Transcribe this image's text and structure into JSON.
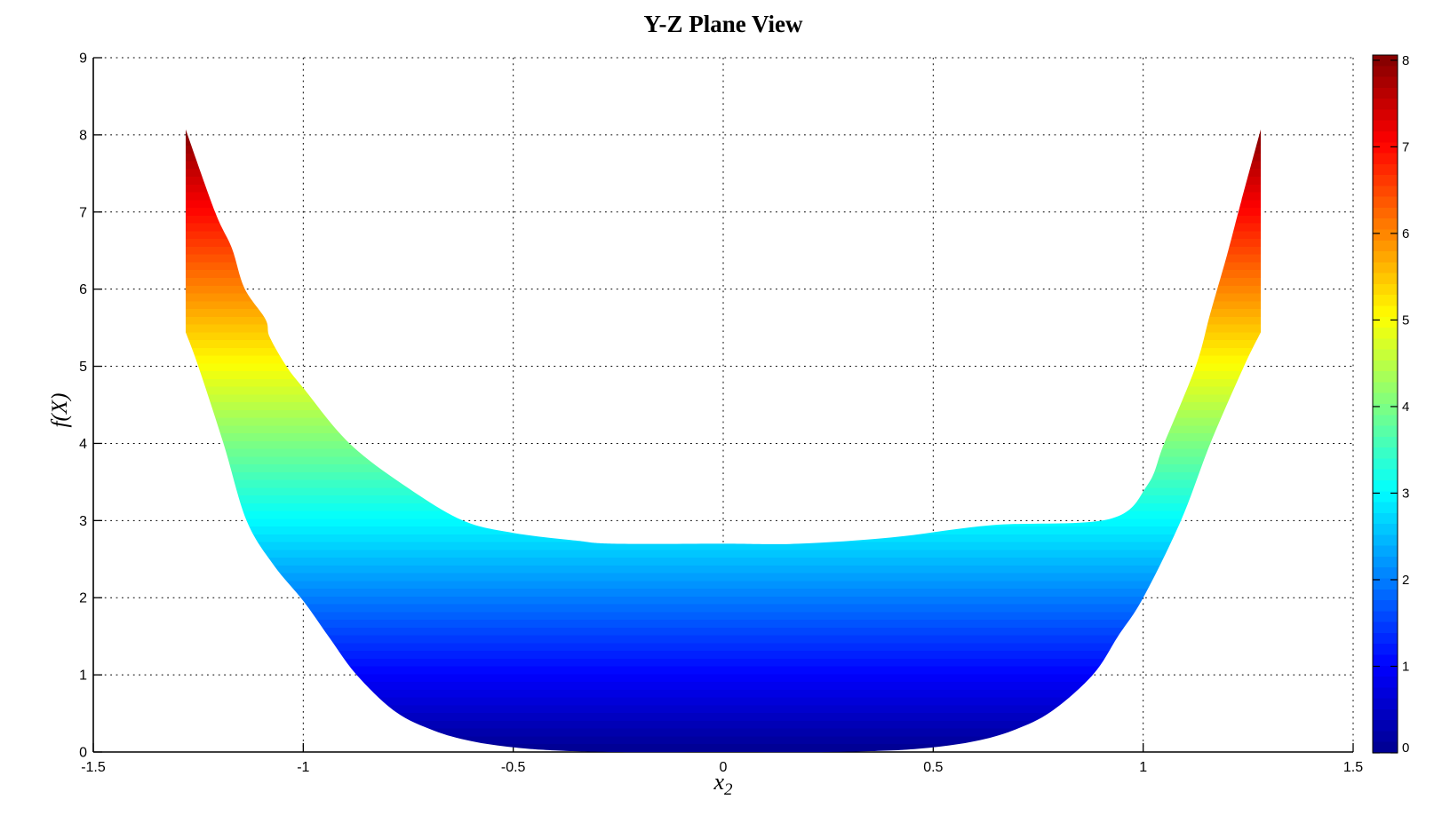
{
  "figure": {
    "background": "#ffffff",
    "title": "Y-Z Plane View",
    "xlabel_base": "x",
    "xlabel_sub": "2",
    "ylabel": "f(X)"
  },
  "chart_data": {
    "type": "area",
    "title": "Y-Z Plane View",
    "xlabel": "x_2",
    "ylabel": "f(X)",
    "xlim": [
      -1.5,
      1.5
    ],
    "ylim": [
      0,
      9
    ],
    "grid": true,
    "grid_style": "dotted",
    "x_ticks": [
      -1.5,
      -1,
      -0.5,
      0,
      0.5,
      1,
      1.5
    ],
    "x_tick_labels": [
      "-1.5",
      "-1",
      "-0.5",
      "0",
      "0.5",
      "1",
      "1.5"
    ],
    "y_ticks": [
      0,
      1,
      2,
      3,
      4,
      5,
      6,
      7,
      8,
      9
    ],
    "y_tick_labels": [
      "0",
      "1",
      "2",
      "3",
      "4",
      "5",
      "6",
      "7",
      "8",
      "9"
    ],
    "colormap": "jet",
    "color_axis_max": 8.06,
    "colorbar_ticks": [
      0,
      1,
      2,
      3,
      4,
      5,
      6,
      7,
      8
    ],
    "colorbar_tick_labels": [
      "0",
      "1",
      "2",
      "3",
      "4",
      "5",
      "6",
      "7",
      "8"
    ],
    "jet_anchor_t": [
      0,
      0.125,
      0.375,
      0.625,
      0.875,
      1
    ],
    "jet_anchor_rgb": [
      [
        0,
        0,
        143
      ],
      [
        0,
        0,
        255
      ],
      [
        0,
        255,
        255
      ],
      [
        255,
        255,
        0
      ],
      [
        255,
        0,
        0
      ],
      [
        128,
        0,
        0
      ]
    ],
    "surface_color_bands": 80,
    "colorbar_color_bands": 64,
    "region": {
      "description": "Projection band of surface f(X) onto the x2-f plane; fill colored by f value with jet colormap; vertical edges at x2 = +/-1.28 spanning f 5.44 to 8.07; band touches f=0 near x2=0",
      "x_edge": 1.28,
      "f_min": 0,
      "f_max": 8.07,
      "lower_boundary": [
        [
          -1.28,
          5.44
        ],
        [
          -1.25,
          5.0
        ],
        [
          -1.19,
          4.0
        ],
        [
          -1.135,
          3.0
        ],
        [
          -1.07,
          2.42
        ],
        [
          -1.0,
          1.96
        ],
        [
          -0.94,
          1.5
        ],
        [
          -0.873,
          1.0
        ],
        [
          -0.78,
          0.52
        ],
        [
          -0.69,
          0.28
        ],
        [
          -0.6,
          0.14
        ],
        [
          -0.5,
          0.06
        ],
        [
          -0.4,
          0.02
        ],
        [
          -0.25,
          0.0
        ],
        [
          0.0,
          0.0
        ],
        [
          0.25,
          0.0
        ],
        [
          0.4,
          0.02
        ],
        [
          0.5,
          0.06
        ],
        [
          0.6,
          0.14
        ],
        [
          0.69,
          0.28
        ],
        [
          0.78,
          0.52
        ],
        [
          0.88,
          1.0
        ],
        [
          0.94,
          1.5
        ],
        [
          1.0,
          2.0
        ],
        [
          1.09,
          3.0
        ],
        [
          1.16,
          4.0
        ],
        [
          1.24,
          5.0
        ],
        [
          1.28,
          5.44
        ]
      ],
      "upper_boundary": [
        [
          -1.28,
          8.07
        ],
        [
          -1.21,
          7.0
        ],
        [
          -1.17,
          6.53
        ],
        [
          -1.14,
          6.01
        ],
        [
          -1.09,
          5.61
        ],
        [
          -1.08,
          5.38
        ],
        [
          -1.04,
          5.0
        ],
        [
          -1.0,
          4.72
        ],
        [
          -0.89,
          4.0
        ],
        [
          -0.75,
          3.42
        ],
        [
          -0.62,
          3.0
        ],
        [
          -0.5,
          2.84
        ],
        [
          -0.35,
          2.74
        ],
        [
          -0.26,
          2.7
        ],
        [
          0.0,
          2.7
        ],
        [
          0.18,
          2.7
        ],
        [
          0.4,
          2.78
        ],
        [
          0.64,
          2.94
        ],
        [
          0.92,
          3.02
        ],
        [
          1.01,
          3.46
        ],
        [
          1.05,
          4.0
        ],
        [
          1.125,
          5.0
        ],
        [
          1.16,
          5.69
        ],
        [
          1.2,
          6.45
        ],
        [
          1.23,
          7.07
        ],
        [
          1.28,
          8.07
        ]
      ]
    }
  }
}
